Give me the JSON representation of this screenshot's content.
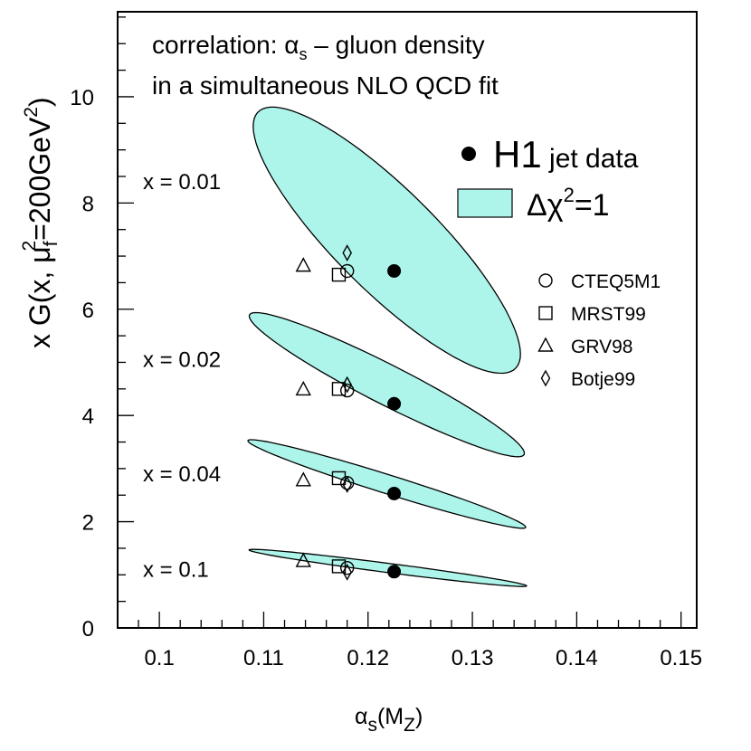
{
  "chart_data": {
    "type": "scatter",
    "title": "",
    "annotation_lines": [
      {
        "pre": "correlation:   ",
        "alpha": "α",
        "sub": "s",
        "post": " – gluon density"
      },
      {
        "pre": "in a simultaneous NLO QCD fit",
        "alpha": "",
        "sub": "",
        "post": ""
      }
    ],
    "xlabel": {
      "base": "α",
      "sub": "s",
      "paren_open": "(M",
      "sub2": "Z",
      "paren_close": ")"
    },
    "ylabel": {
      "part1": "x G(x, μ",
      "sub": "f",
      "sup": "2",
      "part2": "=200GeV",
      "sup2": "2",
      "part3": ")"
    },
    "xlim": [
      0.096,
      0.1515
    ],
    "ylim": [
      0,
      11.6
    ],
    "xticks": [
      0.1,
      0.11,
      0.12,
      0.13,
      0.14,
      0.15
    ],
    "xtick_labels": [
      "0.1",
      "0.11",
      "0.12",
      "0.13",
      "0.14",
      "0.15"
    ],
    "yticks": [
      0,
      2,
      4,
      6,
      8,
      10
    ],
    "ytick_labels": [
      "0",
      "2",
      "4",
      "6",
      "8",
      "10"
    ],
    "colors": {
      "ellipse_fill": "#adf5ea",
      "ellipse_stroke": "#000000",
      "marker": "#000000"
    },
    "x_bins": [
      {
        "label": "x = 0.01",
        "h1": {
          "x": 0.1225,
          "y": 6.72
        },
        "ellipse": {
          "cx": 0.1218,
          "cy": 7.3,
          "ax_dx": 0.0124,
          "ax_dy": -2.4,
          "bx_dx": 0.0032,
          "by_dy": 0.72
        },
        "pdfs": {
          "CTEQ5M1": {
            "x": 0.118,
            "y": 6.72
          },
          "MRST99": {
            "x": 0.1172,
            "y": 6.65
          },
          "GRV98": {
            "x": 0.1138,
            "y": 6.82
          },
          "Botje99": {
            "x": 0.118,
            "y": 7.06
          }
        }
      },
      {
        "label": "x = 0.02",
        "h1": {
          "x": 0.1225,
          "y": 4.22
        },
        "ellipse": {
          "cx": 0.1218,
          "cy": 4.58,
          "ax_dx": 0.0131,
          "ax_dy": -1.33,
          "bx_dx": 0.0015,
          "by_dy": 0.27
        },
        "pdfs": {
          "CTEQ5M1": {
            "x": 0.118,
            "y": 4.47
          },
          "MRST99": {
            "x": 0.1172,
            "y": 4.5
          },
          "GRV98": {
            "x": 0.1138,
            "y": 4.49
          },
          "Botje99": {
            "x": 0.118,
            "y": 4.58
          }
        }
      },
      {
        "label": "x = 0.04",
        "h1": {
          "x": 0.1225,
          "y": 2.53
        },
        "ellipse": {
          "cx": 0.1218,
          "cy": 2.71,
          "ax_dx": 0.0133,
          "ax_dy": -0.82,
          "bx_dx": 0.0006,
          "by_dy": 0.15
        },
        "pdfs": {
          "CTEQ5M1": {
            "x": 0.118,
            "y": 2.73
          },
          "MRST99": {
            "x": 0.1172,
            "y": 2.82
          },
          "GRV98": {
            "x": 0.1138,
            "y": 2.78
          },
          "Botje99": {
            "x": 0.118,
            "y": 2.7
          }
        }
      },
      {
        "label": "x = 0.1",
        "h1": {
          "x": 0.1225,
          "y": 1.06
        },
        "ellipse": {
          "cx": 0.1219,
          "cy": 1.13,
          "ax_dx": 0.0133,
          "ax_dy": -0.34,
          "bx_dx": 0.0003,
          "by_dy": 0.08
        },
        "pdfs": {
          "CTEQ5M1": {
            "x": 0.118,
            "y": 1.13
          },
          "MRST99": {
            "x": 0.1172,
            "y": 1.16
          },
          "GRV98": {
            "x": 0.1138,
            "y": 1.26
          },
          "Botje99": {
            "x": 0.118,
            "y": 1.05
          }
        }
      }
    ],
    "legend": {
      "h1_label_big": "H1",
      "h1_label_small": " jet data",
      "band_label_pre": "Δχ",
      "band_label_sup": "2",
      "band_label_post": "=1",
      "pdf_entries": [
        {
          "name": "CTEQ5M1",
          "marker": "circle"
        },
        {
          "name": "MRST99",
          "marker": "square"
        },
        {
          "name": "GRV98",
          "marker": "triangle"
        },
        {
          "name": "Botje99",
          "marker": "diamond"
        }
      ]
    }
  }
}
